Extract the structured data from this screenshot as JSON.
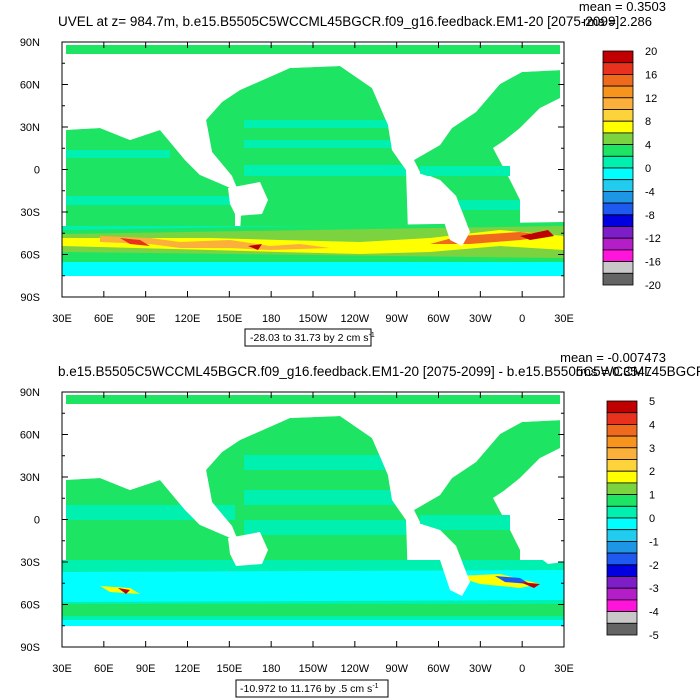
{
  "chart_data": [
    {
      "type": "heatmap",
      "title": "UVEL at z= 984.7m, b.e15.B5505C5WCCML45BGCR.f09_g16.feedback.EM1-20 [2075-2099]",
      "mean_text": "mean = 0.3503",
      "rms_text": "rms = 2.286",
      "range_text": "-28.03 to 31.73 by 2 cm s",
      "range_unit_exp": "-1",
      "x_ticks": [
        "30E",
        "60E",
        "90E",
        "120E",
        "150E",
        "180",
        "150W",
        "120W",
        "90W",
        "60W",
        "30W",
        "0",
        "30E"
      ],
      "y_ticks": [
        "90N",
        "60N",
        "30N",
        "0",
        "30S",
        "60S",
        "90S"
      ],
      "colorbar_labels": [
        "20",
        "16",
        "12",
        "8",
        "4",
        "0",
        "-4",
        "-8",
        "-12",
        "-16",
        "-20"
      ],
      "colors": [
        "#c00000",
        "#e8321e",
        "#f06a1e",
        "#f7941d",
        "#fbb03b",
        "#fcd33a",
        "#ffff00",
        "#7cd340",
        "#1ee464",
        "#00f0b0",
        "#00ffff",
        "#22ccee",
        "#1e96e6",
        "#1e5af0",
        "#0000e0",
        "#7d1ec8",
        "#b41ec8",
        "#ff14dc",
        "#c8c8c8",
        "#646464"
      ]
    },
    {
      "type": "heatmap",
      "title": "b.e15.B5505C5WCCML45BGCR.f09_g16.feedback.EM1-20 [2075-2099] - b.e15.B5505C5WCCML45BGCR",
      "mean_text": "mean = -0.007473",
      "rms_text": "rms = 0.3547",
      "range_text": "-10.972 to 11.176 by .5 cm s",
      "range_unit_exp": "-1",
      "x_ticks": [
        "30E",
        "60E",
        "90E",
        "120E",
        "150E",
        "180",
        "150W",
        "120W",
        "90W",
        "60W",
        "30W",
        "0",
        "30E"
      ],
      "y_ticks": [
        "90N",
        "60N",
        "30N",
        "0",
        "30S",
        "60S",
        "90S"
      ],
      "colorbar_labels": [
        "5",
        "4",
        "3",
        "2",
        "1",
        "0",
        "-1",
        "-2",
        "-3",
        "-4",
        "-5"
      ],
      "colors": [
        "#c00000",
        "#e8321e",
        "#f06a1e",
        "#f7941d",
        "#fbb03b",
        "#fcd33a",
        "#ffff00",
        "#7cd340",
        "#1ee464",
        "#00f0b0",
        "#00ffff",
        "#22ccee",
        "#1e96e6",
        "#1e5af0",
        "#0000e0",
        "#7d1ec8",
        "#b41ec8",
        "#ff14dc",
        "#c8c8c8",
        "#646464"
      ]
    }
  ]
}
